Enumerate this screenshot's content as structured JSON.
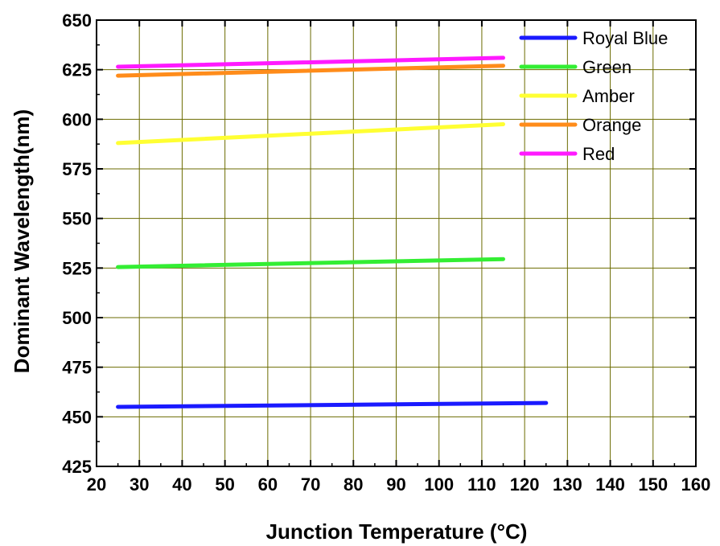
{
  "chart_data": {
    "type": "line",
    "xlabel": "Junction Temperature (°C)",
    "ylabel": "Dominant Wavelength(nm)",
    "xlim": [
      20,
      160
    ],
    "ylim": [
      425,
      650
    ],
    "x_ticks": [
      "20",
      "30",
      "40",
      "50",
      "60",
      "70",
      "80",
      "90",
      "100",
      "110",
      "120",
      "130",
      "140",
      "150",
      "160"
    ],
    "y_ticks": [
      "425",
      "450",
      "475",
      "500",
      "525",
      "550",
      "575",
      "600",
      "625",
      "650"
    ],
    "grid": true,
    "legend_position": "top-right",
    "series": [
      {
        "name": "Royal Blue",
        "color": "#1a1aff",
        "x": [
          25,
          125
        ],
        "y": [
          455,
          457
        ]
      },
      {
        "name": "Green",
        "color": "#33ee33",
        "x": [
          25,
          115
        ],
        "y": [
          525.5,
          529.5
        ]
      },
      {
        "name": "Amber",
        "color": "#ffff33",
        "x": [
          25,
          115
        ],
        "y": [
          588,
          597.5
        ]
      },
      {
        "name": "Orange",
        "color": "#ff8c1a",
        "x": [
          25,
          115
        ],
        "y": [
          622,
          627
        ]
      },
      {
        "name": "Red",
        "color": "#ff1aff",
        "x": [
          25,
          115
        ],
        "y": [
          626.5,
          631
        ]
      }
    ]
  }
}
